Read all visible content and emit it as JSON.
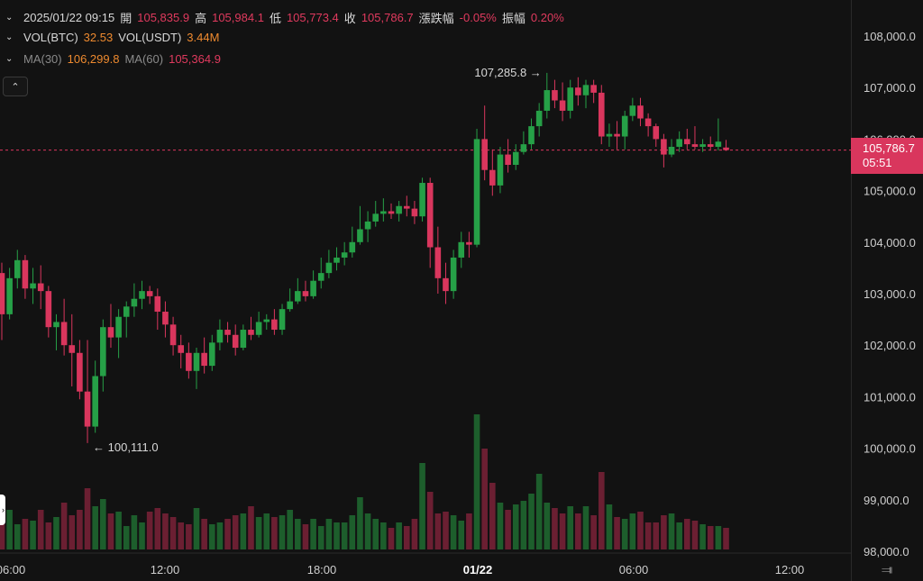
{
  "legend": {
    "date": "2025/01/22 09:15",
    "open_label": "開",
    "open": "105,835.9",
    "high_label": "高",
    "high": "105,984.1",
    "low_label": "低",
    "low": "105,773.4",
    "close_label": "收",
    "close": "105,786.7",
    "change_label": "漲跌幅",
    "change": "-0.05%",
    "amp_label": "振幅",
    "amp": "0.20%",
    "vol_btc_label": "VOL(BTC)",
    "vol_btc": "32.53",
    "vol_usdt_label": "VOL(USDT)",
    "vol_usdt": "3.44M",
    "ma30_label": "MA(30)",
    "ma30": "106,299.8",
    "ma60_label": "MA(60)",
    "ma60": "105,364.9"
  },
  "price_tag": {
    "price": "105,786.7",
    "countdown": "05:51"
  },
  "colors": {
    "up": "#26a047",
    "down": "#d9365d",
    "vol_up": "#1d5e2c",
    "vol_down": "#6b1f32",
    "bg": "#121212",
    "text": "#d8d8d8"
  },
  "icons": {
    "collapse": "chevron-up-icon",
    "reset": "fit-arrows-icon",
    "legend_toggle": "chevron-down-icon"
  },
  "chart_data": {
    "type": "candlestick",
    "interval_note": "",
    "y_axis": {
      "ticks": [
        "108,000.0",
        "107,000.0",
        "106,000.0",
        "105,000.0",
        "104,000.0",
        "103,000.0",
        "102,000.0",
        "101,000.0",
        "100,000.0",
        "99,000.0",
        "98,000.0"
      ],
      "range": [
        98000,
        108400
      ]
    },
    "x_axis": {
      "ticks": [
        "06:00",
        "12:00",
        "18:00",
        "01/22",
        "06:00",
        "12:00"
      ]
    },
    "annotations": {
      "high": "107,285.8",
      "low": "100,111.0"
    },
    "current_price": 105786.7,
    "candles": [
      {
        "o": 103400,
        "h": 103600,
        "l": 102100,
        "c": 102600
      },
      {
        "o": 102600,
        "h": 103500,
        "l": 102500,
        "c": 103300
      },
      {
        "o": 103300,
        "h": 103850,
        "l": 103100,
        "c": 103650
      },
      {
        "o": 103650,
        "h": 103750,
        "l": 102900,
        "c": 103100
      },
      {
        "o": 103100,
        "h": 103500,
        "l": 102800,
        "c": 103200
      },
      {
        "o": 103200,
        "h": 103550,
        "l": 102700,
        "c": 103050
      },
      {
        "o": 103050,
        "h": 103150,
        "l": 102150,
        "c": 102350
      },
      {
        "o": 102350,
        "h": 102600,
        "l": 101900,
        "c": 102450
      },
      {
        "o": 102450,
        "h": 102900,
        "l": 101800,
        "c": 102000
      },
      {
        "o": 102000,
        "h": 102600,
        "l": 101200,
        "c": 101850
      },
      {
        "o": 101850,
        "h": 102100,
        "l": 100950,
        "c": 101100
      },
      {
        "o": 101100,
        "h": 102100,
        "l": 100100,
        "c": 100420
      },
      {
        "o": 100420,
        "h": 101700,
        "l": 100300,
        "c": 101400
      },
      {
        "o": 101400,
        "h": 102500,
        "l": 101100,
        "c": 102350
      },
      {
        "o": 102350,
        "h": 102800,
        "l": 101950,
        "c": 102150
      },
      {
        "o": 102150,
        "h": 102700,
        "l": 101750,
        "c": 102550
      },
      {
        "o": 102550,
        "h": 102850,
        "l": 102150,
        "c": 102750
      },
      {
        "o": 102750,
        "h": 103200,
        "l": 102550,
        "c": 102900
      },
      {
        "o": 102900,
        "h": 103250,
        "l": 102700,
        "c": 103050
      },
      {
        "o": 103050,
        "h": 103150,
        "l": 102800,
        "c": 102950
      },
      {
        "o": 102950,
        "h": 103100,
        "l": 102300,
        "c": 102650
      },
      {
        "o": 102650,
        "h": 102850,
        "l": 102150,
        "c": 102400
      },
      {
        "o": 102400,
        "h": 102550,
        "l": 101800,
        "c": 102000
      },
      {
        "o": 102000,
        "h": 102200,
        "l": 101550,
        "c": 101850
      },
      {
        "o": 101850,
        "h": 102050,
        "l": 101350,
        "c": 101500
      },
      {
        "o": 101500,
        "h": 101950,
        "l": 101150,
        "c": 101850
      },
      {
        "o": 101850,
        "h": 102150,
        "l": 101450,
        "c": 101600
      },
      {
        "o": 101600,
        "h": 102200,
        "l": 101500,
        "c": 102050
      },
      {
        "o": 102050,
        "h": 102500,
        "l": 101900,
        "c": 102300
      },
      {
        "o": 102300,
        "h": 102450,
        "l": 102050,
        "c": 102200
      },
      {
        "o": 102200,
        "h": 102400,
        "l": 101800,
        "c": 101950
      },
      {
        "o": 101950,
        "h": 102400,
        "l": 101900,
        "c": 102300
      },
      {
        "o": 102300,
        "h": 102550,
        "l": 102100,
        "c": 102200
      },
      {
        "o": 102200,
        "h": 102650,
        "l": 102150,
        "c": 102450
      },
      {
        "o": 102450,
        "h": 102600,
        "l": 102300,
        "c": 102500
      },
      {
        "o": 102500,
        "h": 102700,
        "l": 102200,
        "c": 102300
      },
      {
        "o": 102300,
        "h": 102800,
        "l": 102200,
        "c": 102700
      },
      {
        "o": 102700,
        "h": 103100,
        "l": 102650,
        "c": 102850
      },
      {
        "o": 102850,
        "h": 103300,
        "l": 102800,
        "c": 103050
      },
      {
        "o": 103050,
        "h": 103250,
        "l": 102850,
        "c": 102950
      },
      {
        "o": 102950,
        "h": 103450,
        "l": 102900,
        "c": 103250
      },
      {
        "o": 103250,
        "h": 103700,
        "l": 103100,
        "c": 103400
      },
      {
        "o": 103400,
        "h": 103850,
        "l": 103300,
        "c": 103600
      },
      {
        "o": 103600,
        "h": 103900,
        "l": 103450,
        "c": 103700
      },
      {
        "o": 103700,
        "h": 104000,
        "l": 103550,
        "c": 103800
      },
      {
        "o": 103800,
        "h": 104300,
        "l": 103700,
        "c": 104000
      },
      {
        "o": 104000,
        "h": 104700,
        "l": 103950,
        "c": 104250
      },
      {
        "o": 104250,
        "h": 104600,
        "l": 104000,
        "c": 104400
      },
      {
        "o": 104400,
        "h": 104800,
        "l": 104300,
        "c": 104550
      },
      {
        "o": 104550,
        "h": 104850,
        "l": 104400,
        "c": 104600
      },
      {
        "o": 104600,
        "h": 104750,
        "l": 104450,
        "c": 104550
      },
      {
        "o": 104550,
        "h": 104800,
        "l": 104400,
        "c": 104700
      },
      {
        "o": 104700,
        "h": 104900,
        "l": 104500,
        "c": 104650
      },
      {
        "o": 104650,
        "h": 104800,
        "l": 104350,
        "c": 104500
      },
      {
        "o": 104500,
        "h": 105250,
        "l": 104400,
        "c": 105150
      },
      {
        "o": 105150,
        "h": 105250,
        "l": 103500,
        "c": 103900
      },
      {
        "o": 103900,
        "h": 104300,
        "l": 103000,
        "c": 103300
      },
      {
        "o": 103300,
        "h": 103600,
        "l": 102800,
        "c": 103050
      },
      {
        "o": 103050,
        "h": 103850,
        "l": 102900,
        "c": 103700
      },
      {
        "o": 103700,
        "h": 104200,
        "l": 103500,
        "c": 104000
      },
      {
        "o": 104000,
        "h": 104200,
        "l": 103700,
        "c": 103950
      },
      {
        "o": 103950,
        "h": 106200,
        "l": 103900,
        "c": 106000
      },
      {
        "o": 106000,
        "h": 106650,
        "l": 105200,
        "c": 105400
      },
      {
        "o": 105400,
        "h": 105800,
        "l": 104900,
        "c": 105100
      },
      {
        "o": 105100,
        "h": 105850,
        "l": 104950,
        "c": 105700
      },
      {
        "o": 105700,
        "h": 106000,
        "l": 105350,
        "c": 105500
      },
      {
        "o": 105500,
        "h": 105900,
        "l": 105400,
        "c": 105750
      },
      {
        "o": 105750,
        "h": 106150,
        "l": 105700,
        "c": 105900
      },
      {
        "o": 105900,
        "h": 106400,
        "l": 105800,
        "c": 106250
      },
      {
        "o": 106250,
        "h": 106700,
        "l": 106050,
        "c": 106550
      },
      {
        "o": 106550,
        "h": 107285,
        "l": 106400,
        "c": 106950
      },
      {
        "o": 106950,
        "h": 107150,
        "l": 106600,
        "c": 106750
      },
      {
        "o": 106750,
        "h": 107100,
        "l": 106350,
        "c": 106550
      },
      {
        "o": 106550,
        "h": 107150,
        "l": 106400,
        "c": 107000
      },
      {
        "o": 107000,
        "h": 107200,
        "l": 106650,
        "c": 106850
      },
      {
        "o": 106850,
        "h": 107150,
        "l": 106600,
        "c": 107050
      },
      {
        "o": 107050,
        "h": 107150,
        "l": 106700,
        "c": 106900
      },
      {
        "o": 106900,
        "h": 107050,
        "l": 105900,
        "c": 106050
      },
      {
        "o": 106050,
        "h": 106300,
        "l": 105850,
        "c": 106100
      },
      {
        "o": 106100,
        "h": 106350,
        "l": 105800,
        "c": 106050
      },
      {
        "o": 106050,
        "h": 106550,
        "l": 105800,
        "c": 106450
      },
      {
        "o": 106450,
        "h": 106800,
        "l": 106350,
        "c": 106650
      },
      {
        "o": 106650,
        "h": 106800,
        "l": 106250,
        "c": 106400
      },
      {
        "o": 106400,
        "h": 106500,
        "l": 106050,
        "c": 106250
      },
      {
        "o": 106250,
        "h": 106300,
        "l": 105850,
        "c": 106000
      },
      {
        "o": 106000,
        "h": 106100,
        "l": 105450,
        "c": 105700
      },
      {
        "o": 105700,
        "h": 106000,
        "l": 105650,
        "c": 105850
      },
      {
        "o": 105850,
        "h": 106150,
        "l": 105750,
        "c": 106000
      },
      {
        "o": 106000,
        "h": 106200,
        "l": 105800,
        "c": 105900
      },
      {
        "o": 105900,
        "h": 106250,
        "l": 105800,
        "c": 105850
      },
      {
        "o": 105850,
        "h": 106000,
        "l": 105750,
        "c": 105900
      },
      {
        "o": 105900,
        "h": 106050,
        "l": 105800,
        "c": 105850
      },
      {
        "o": 105850,
        "h": 106400,
        "l": 105780,
        "c": 105950
      },
      {
        "o": 105836,
        "h": 105984,
        "l": 105773,
        "c": 105787
      }
    ],
    "volume": [
      40,
      44,
      28,
      34,
      32,
      44,
      30,
      36,
      52,
      38,
      44,
      68,
      48,
      56,
      40,
      42,
      26,
      38,
      30,
      42,
      46,
      40,
      36,
      30,
      28,
      46,
      34,
      28,
      30,
      34,
      38,
      40,
      48,
      36,
      40,
      36,
      38,
      44,
      34,
      28,
      34,
      26,
      34,
      30,
      30,
      38,
      58,
      40,
      34,
      30,
      24,
      30,
      26,
      34,
      96,
      64,
      40,
      42,
      38,
      32,
      40,
      150,
      112,
      74,
      52,
      44,
      50,
      54,
      62,
      84,
      52,
      46,
      40,
      48,
      40,
      48,
      38,
      86,
      50,
      36,
      34,
      40,
      42,
      30,
      30,
      38,
      40,
      30,
      34,
      32,
      28,
      26,
      26,
      24,
      10
    ]
  }
}
